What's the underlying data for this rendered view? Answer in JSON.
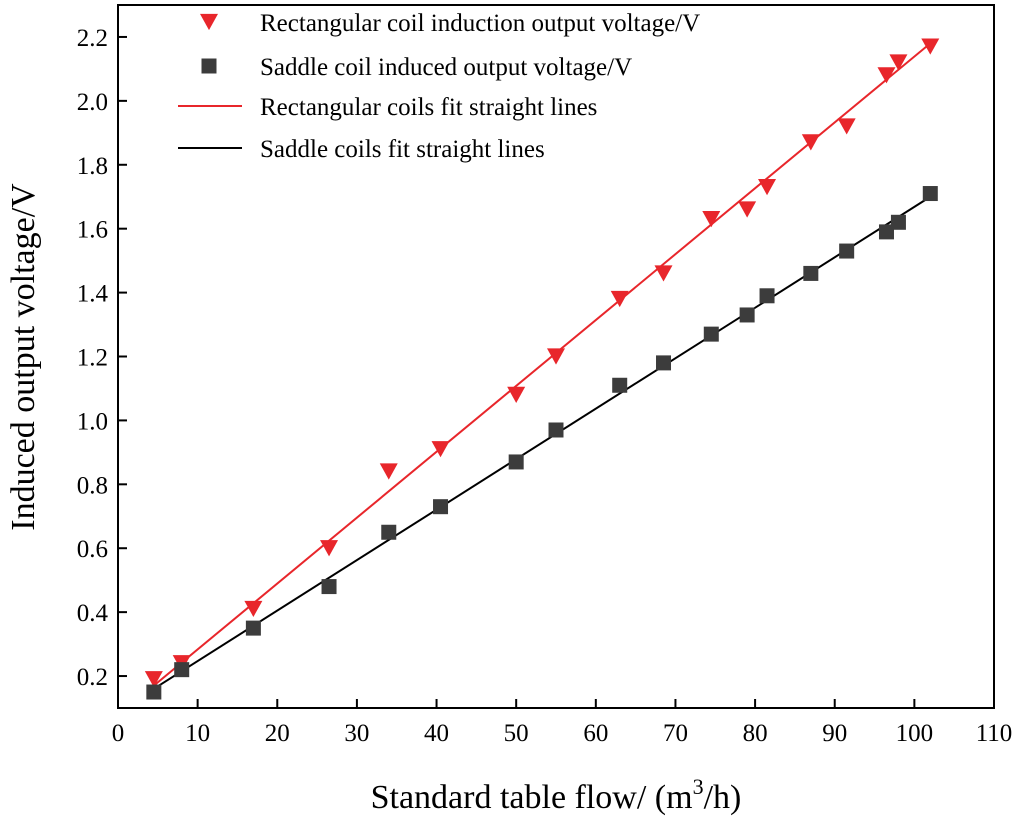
{
  "chart_data": {
    "type": "scatter",
    "title": "",
    "xlabel": "Standard table flow/ (m",
    "xlabel_sup": "3",
    "xlabel_tail": "/h)",
    "ylabel": "Induced output voltage/V",
    "xlim": [
      0,
      110
    ],
    "ylim": [
      0.1,
      2.3
    ],
    "xticks": [
      0,
      10,
      20,
      30,
      40,
      50,
      60,
      70,
      80,
      90,
      100,
      110
    ],
    "yticks": [
      0.2,
      0.4,
      0.6,
      0.8,
      1.0,
      1.2,
      1.4,
      1.6,
      1.8,
      2.0,
      2.2
    ],
    "grid": false,
    "legend_position": "top-left",
    "series": [
      {
        "name": "Rectangular coil induction output voltage/V",
        "kind": "scatter",
        "marker": "triangle-down",
        "color": "#e8262b",
        "x": [
          4.5,
          8,
          17,
          26.5,
          34,
          40.5,
          50,
          55,
          63,
          68.5,
          74.5,
          79,
          81.5,
          87,
          91.5,
          96.5,
          98,
          102
        ],
        "y": [
          0.19,
          0.24,
          0.41,
          0.6,
          0.84,
          0.91,
          1.08,
          1.2,
          1.38,
          1.46,
          1.63,
          1.66,
          1.73,
          1.87,
          1.92,
          2.08,
          2.12,
          2.17
        ]
      },
      {
        "name": "Saddle coil induced output voltage/V",
        "kind": "scatter",
        "marker": "square",
        "color": "#3c3c3c",
        "x": [
          4.5,
          8,
          17,
          26.5,
          34,
          40.5,
          50,
          55,
          63,
          68.5,
          74.5,
          79,
          81.5,
          87,
          91.5,
          96.5,
          98,
          102
        ],
        "y": [
          0.15,
          0.22,
          0.35,
          0.48,
          0.65,
          0.73,
          0.87,
          0.97,
          1.11,
          1.18,
          1.27,
          1.33,
          1.39,
          1.46,
          1.53,
          1.59,
          1.62,
          1.71
        ]
      },
      {
        "name": "Rectangular coils fit straight lines",
        "kind": "line",
        "color": "#e8262b",
        "x": [
          4.5,
          102
        ],
        "y": [
          0.17,
          2.18
        ]
      },
      {
        "name": "Saddle coils fit straight lines",
        "kind": "line",
        "color": "#000000",
        "x": [
          4.5,
          102
        ],
        "y": [
          0.16,
          1.7
        ]
      }
    ]
  }
}
